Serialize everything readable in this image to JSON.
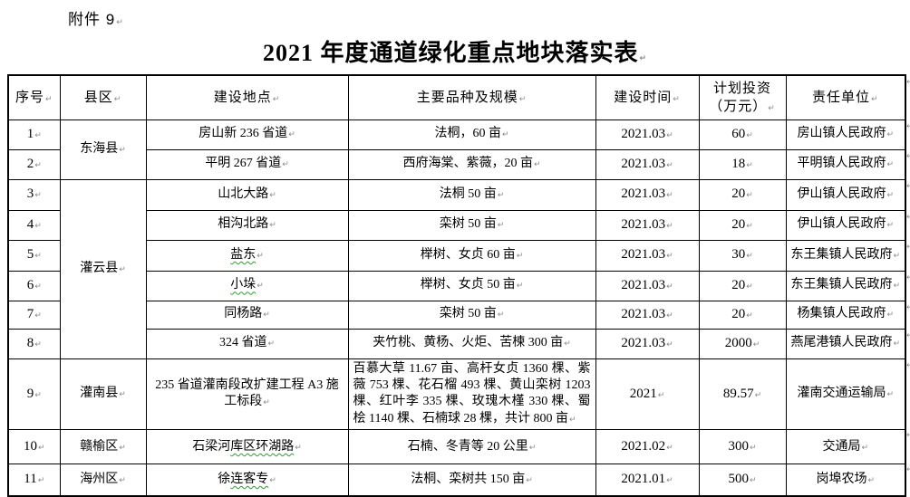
{
  "page": {
    "attachment_label": "附件 9",
    "title": "2021 年度通道绿化重点地块落实表"
  },
  "marks": {
    "paragraph_mark": "↵",
    "row_end_mark": "↵"
  },
  "colors": {
    "spellcheck_underline": "#2e9e2e",
    "table_border": "#000000",
    "text": "#000000",
    "background": "#ffffff"
  },
  "table": {
    "headers": [
      {
        "id": "no",
        "label": "序号"
      },
      {
        "id": "county",
        "label": "县区"
      },
      {
        "id": "location",
        "label": "建设地点"
      },
      {
        "id": "species",
        "label": "主要品种及规模"
      },
      {
        "id": "time",
        "label": "建设时间"
      },
      {
        "id": "investment",
        "label": "计划投资",
        "label2": "（万元）"
      },
      {
        "id": "unit",
        "label": "责任单位"
      }
    ],
    "rows": [
      {
        "no": "1",
        "county": "东海县",
        "county_rowspan": 2,
        "location": "房山新 236 省道",
        "species": "法桐，60 亩",
        "time": "2021.03",
        "investment": "60",
        "unit": "房山镇人民政府"
      },
      {
        "no": "2",
        "location": "平明 267 省道",
        "species": "西府海棠、紫薇，20 亩",
        "time": "2021.03",
        "investment": "18",
        "unit": "平明镇人民政府"
      },
      {
        "no": "3",
        "county": "灌云县",
        "county_rowspan": 6,
        "location": "山北大路",
        "species": "法桐 50 亩",
        "time": "2021.03",
        "investment": "20",
        "unit": "伊山镇人民政府"
      },
      {
        "no": "4",
        "location": "相沟北路",
        "species": "栾树 50 亩",
        "time": "2021.03",
        "investment": "20",
        "unit": "伊山镇人民政府"
      },
      {
        "no": "5",
        "location": "盐东",
        "location_squiggle": "盐东",
        "species": "榉树、女贞 60 亩",
        "time": "2021.03",
        "investment": "30",
        "unit": "东王集镇人民政府"
      },
      {
        "no": "6",
        "location": "小垛",
        "location_squiggle": "小垛",
        "species": "榉树、女贞 50 亩",
        "time": "2021.03",
        "investment": "20",
        "unit": "东王集镇人民政府"
      },
      {
        "no": "7",
        "location": "同杨路",
        "species": "栾树 50 亩",
        "time": "2021.03",
        "investment": "20",
        "unit": "杨集镇人民政府"
      },
      {
        "no": "8",
        "location": "324 省道",
        "species": "夹竹桃、黄杨、火炬、苦楝 300 亩",
        "time": "2021.03",
        "investment": "2000",
        "unit": "燕尾港镇人民政府"
      },
      {
        "no": "9",
        "county": "灌南县",
        "county_rowspan": 1,
        "location": "235 省道灌南段改扩建工程 A3 施工标段",
        "species": "百慕大草 11.67 亩、高杆女贞 1360 棵、紫薇 753 棵、花石榴 493 棵、黄山栾树 1203 棵、红叶李 335 棵、玫瑰木槿 330 棵、蜀桧 1140 棵、石楠球 28 棵，共计 800 亩",
        "species_align": "left",
        "time": "2021",
        "investment": "89.57",
        "unit": "灌南交通运输局"
      },
      {
        "no": "10",
        "county": "赣榆区",
        "county_rowspan": 1,
        "location": "石梁河库区环湖路",
        "location_squiggle": "库区环湖路",
        "species": "石楠、冬青等 20 公里",
        "time": "2021.02",
        "investment": "300",
        "unit": "交通局"
      },
      {
        "no": "11",
        "county": "海州区",
        "county_rowspan": 1,
        "location": "徐连客专",
        "location_squiggle": "连客专",
        "species": "法桐、栾树共 150 亩",
        "time": "2021.01",
        "investment": "500",
        "unit": "岗埠农场"
      }
    ]
  }
}
